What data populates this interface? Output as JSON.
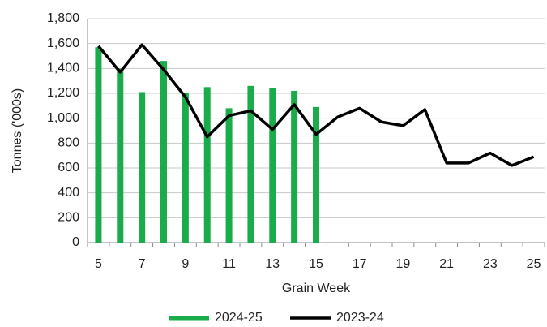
{
  "chart_data": {
    "type": "bar",
    "categories": [
      5,
      null,
      7,
      null,
      9,
      null,
      11,
      null,
      13,
      null,
      15,
      null,
      17,
      null,
      19,
      null,
      21,
      null,
      23,
      null,
      25
    ],
    "x_label": "Grain Week",
    "y_label": "Tonnes  ('000s)",
    "series": [
      {
        "name": "2024-25",
        "type": "bar",
        "color": "#1aab4b",
        "values": [
          1570,
          1400,
          1210,
          1460,
          1200,
          1250,
          1080,
          1260,
          1240,
          1220,
          1090,
          null,
          null,
          null,
          null,
          null,
          null,
          null,
          null,
          null,
          null
        ]
      },
      {
        "name": "2023-24",
        "type": "line",
        "color": "#000000",
        "values": [
          1580,
          1370,
          1590,
          1390,
          1170,
          850,
          1020,
          1060,
          910,
          1110,
          870,
          1010,
          1080,
          970,
          940,
          1070,
          640,
          640,
          720,
          620,
          690
        ]
      }
    ],
    "ylim": [
      0,
      1800
    ],
    "yticks": [
      0,
      200,
      400,
      600,
      800,
      {
        "value": 1000,
        "label": "1,000"
      },
      {
        "value": 1200,
        "label": "1,200"
      },
      {
        "value": 1400,
        "label": "1,400"
      },
      {
        "value": 1600,
        "label": "1,600"
      },
      {
        "value": 1800,
        "label": "1,800"
      }
    ],
    "grid": true,
    "legend": "bottom"
  }
}
